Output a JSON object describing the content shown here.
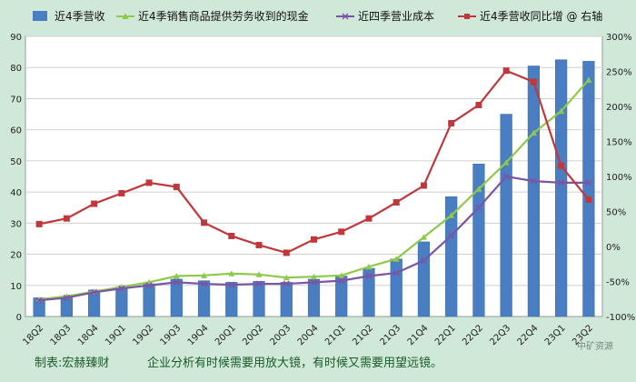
{
  "chart_data": {
    "type": "bar+line",
    "categories": [
      "18Q2",
      "18Q3",
      "18Q4",
      "19Q1",
      "19Q2",
      "19Q3",
      "19Q4",
      "20Q1",
      "20Q2",
      "20Q3",
      "20Q4",
      "21Q1",
      "21Q2",
      "21Q3",
      "21Q4",
      "22Q1",
      "22Q2",
      "22Q3",
      "22Q4",
      "23Q1",
      "23Q2"
    ],
    "series": [
      {
        "name": "近4季营收",
        "kind": "bar",
        "axis": "left",
        "color": "#4a7ec3",
        "values": [
          6.0,
          6.5,
          8.5,
          9.5,
          10.5,
          12.0,
          11.5,
          11.0,
          11.3,
          11.0,
          12.0,
          13.0,
          15.5,
          18.5,
          24.0,
          38.5,
          49.0,
          65.0,
          80.5,
          82.5,
          82.0
        ]
      },
      {
        "name": "近4季销售商品提供劳务收到的现金",
        "kind": "line",
        "axis": "left",
        "color": "#8fc94b",
        "marker": "triangle",
        "values": [
          5.5,
          6.5,
          8.0,
          9.5,
          11.0,
          13.0,
          13.2,
          13.8,
          13.5,
          12.5,
          12.8,
          13.2,
          16.0,
          18.5,
          25.5,
          32.5,
          41.0,
          49.5,
          59.0,
          66.0,
          76.0
        ]
      },
      {
        "name": "近四季营业成本",
        "kind": "line",
        "axis": "left",
        "color": "#7a55a5",
        "marker": "x",
        "values": [
          5.2,
          6.0,
          7.8,
          9.0,
          10.0,
          11.0,
          10.5,
          10.2,
          10.5,
          10.5,
          11.0,
          11.5,
          13.0,
          14.0,
          18.0,
          26.0,
          35.0,
          45.0,
          43.5,
          43.0,
          43.0
        ]
      },
      {
        "name": "近4季营收同比增 @ 右轴",
        "kind": "line",
        "axis": "right",
        "color": "#c0383c",
        "marker": "square",
        "values": [
          32,
          40,
          61,
          76,
          91,
          85,
          34,
          15,
          2,
          -9,
          10,
          21,
          40,
          63,
          87,
          176,
          202,
          251,
          235,
          115,
          67
        ]
      }
    ],
    "left_axis": {
      "min": 0,
      "max": 90,
      "ticks": [
        0,
        10,
        20,
        30,
        40,
        50,
        60,
        70,
        80,
        90
      ]
    },
    "right_axis": {
      "min": -100,
      "max": 300,
      "ticks": [
        "-100%",
        "-50%",
        "0%",
        "50%",
        "100%",
        "150%",
        "200%",
        "250%",
        "300%"
      ]
    },
    "grid": true,
    "legend_position": "top"
  },
  "footer": {
    "source": "制表:宏赫臻财",
    "slogan": "企业分析有时候需要用放大镜，有时候又需要用望远镜。",
    "watermark": "中矿资源"
  }
}
